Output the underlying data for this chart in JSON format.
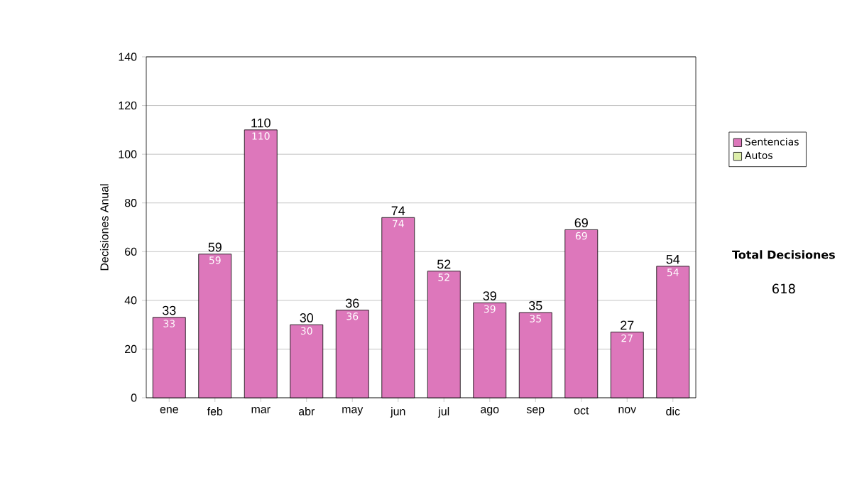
{
  "chart_data": {
    "type": "bar",
    "ylabel": "Decisiones Anual",
    "categories": [
      "ene",
      "feb",
      "mar",
      "abr",
      "may",
      "jun",
      "jul",
      "ago",
      "sep",
      "oct",
      "nov",
      "dic"
    ],
    "series": [
      {
        "name": "Sentencias",
        "color": "#dd77bb",
        "values": [
          33,
          59,
          110,
          30,
          36,
          74,
          52,
          39,
          35,
          69,
          27,
          54
        ]
      },
      {
        "name": "Autos",
        "color": "#ddeeaa",
        "values": [
          null,
          null,
          null,
          null,
          null,
          null,
          null,
          null,
          null,
          null,
          null,
          null
        ]
      }
    ],
    "totals": [
      "33",
      "59",
      "110",
      "30",
      "36",
      "74",
      "52",
      "39",
      "35",
      "69",
      "27",
      "54"
    ],
    "data_labels": true,
    "ylim": [
      0,
      140
    ],
    "yticks": [
      0,
      20,
      40,
      60,
      80,
      100,
      120,
      140
    ],
    "grid": "y",
    "legend": "right",
    "annotations": [
      "Total Decisiones",
      "618"
    ]
  }
}
